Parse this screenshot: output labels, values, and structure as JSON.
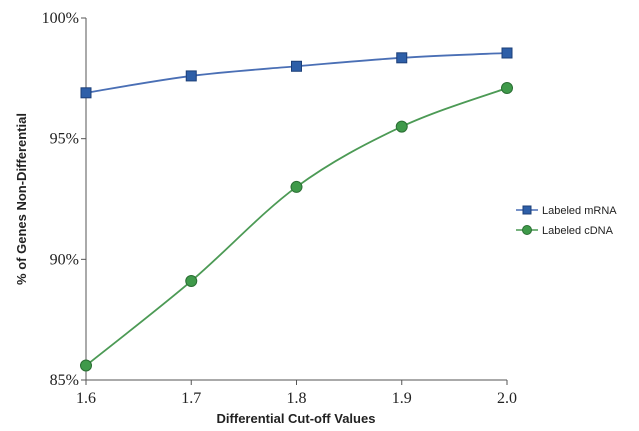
{
  "chart_data": {
    "type": "line",
    "xlabel": "Differential Cut-off Values",
    "ylabel": "% of Genes Non-Differential",
    "x": [
      1.6,
      1.7,
      1.8,
      1.9,
      2.0
    ],
    "x_tick_labels": [
      "1.6",
      "1.7",
      "1.8",
      "1.9",
      "2.0"
    ],
    "y_ticks": [
      85,
      90,
      95,
      100
    ],
    "y_tick_labels": [
      "85%",
      "90%",
      "95%",
      "100%"
    ],
    "xlim": [
      1.6,
      2.0
    ],
    "ylim": [
      85,
      100
    ],
    "grid": false,
    "legend_position": "right",
    "series": [
      {
        "name": "Labeled mRNA",
        "values": [
          96.9,
          97.6,
          98.0,
          98.35,
          98.55
        ],
        "color": "#2e5fa8",
        "line_color": "#4a6fb5",
        "marker": "square"
      },
      {
        "name": "Labeled cDNA",
        "values": [
          85.6,
          89.1,
          93.0,
          95.5,
          97.1
        ],
        "color": "#3f9a4a",
        "line_color": "#4c9a55",
        "marker": "circle"
      }
    ]
  }
}
